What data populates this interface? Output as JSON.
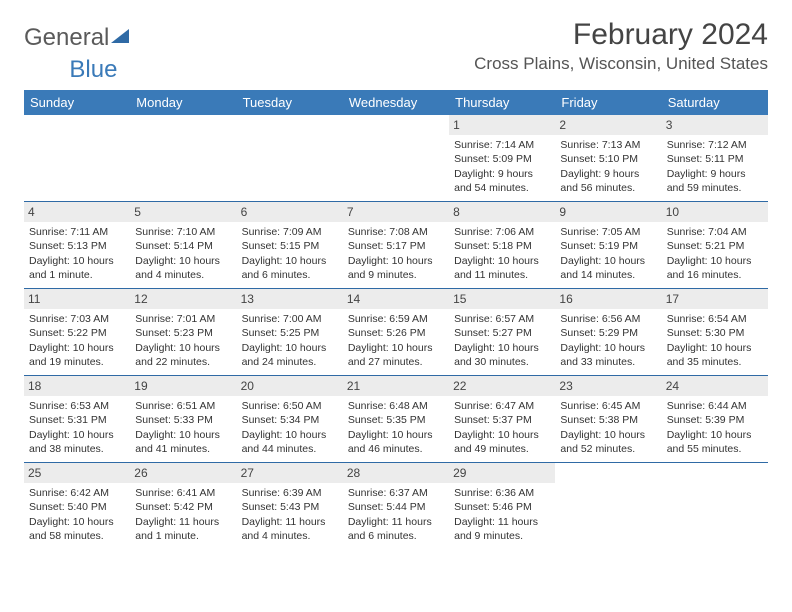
{
  "brand": {
    "word1": "General",
    "word2": "Blue"
  },
  "title": "February 2024",
  "location": "Cross Plains, Wisconsin, United States",
  "colors": {
    "header_bg": "#3a7ab8",
    "rule": "#2f6aa5",
    "daynum_bg": "#ececec",
    "text": "#333333"
  },
  "typography": {
    "title_fontsize": 30,
    "location_fontsize": 17,
    "dayhead_fontsize": 13,
    "cell_fontsize": 10.5
  },
  "day_names": [
    "Sunday",
    "Monday",
    "Tuesday",
    "Wednesday",
    "Thursday",
    "Friday",
    "Saturday"
  ],
  "weeks": [
    [
      {
        "n": "",
        "lines": []
      },
      {
        "n": "",
        "lines": []
      },
      {
        "n": "",
        "lines": []
      },
      {
        "n": "",
        "lines": []
      },
      {
        "n": "1",
        "lines": [
          "Sunrise: 7:14 AM",
          "Sunset: 5:09 PM",
          "Daylight: 9 hours and 54 minutes."
        ]
      },
      {
        "n": "2",
        "lines": [
          "Sunrise: 7:13 AM",
          "Sunset: 5:10 PM",
          "Daylight: 9 hours and 56 minutes."
        ]
      },
      {
        "n": "3",
        "lines": [
          "Sunrise: 7:12 AM",
          "Sunset: 5:11 PM",
          "Daylight: 9 hours and 59 minutes."
        ]
      }
    ],
    [
      {
        "n": "4",
        "lines": [
          "Sunrise: 7:11 AM",
          "Sunset: 5:13 PM",
          "Daylight: 10 hours and 1 minute."
        ]
      },
      {
        "n": "5",
        "lines": [
          "Sunrise: 7:10 AM",
          "Sunset: 5:14 PM",
          "Daylight: 10 hours and 4 minutes."
        ]
      },
      {
        "n": "6",
        "lines": [
          "Sunrise: 7:09 AM",
          "Sunset: 5:15 PM",
          "Daylight: 10 hours and 6 minutes."
        ]
      },
      {
        "n": "7",
        "lines": [
          "Sunrise: 7:08 AM",
          "Sunset: 5:17 PM",
          "Daylight: 10 hours and 9 minutes."
        ]
      },
      {
        "n": "8",
        "lines": [
          "Sunrise: 7:06 AM",
          "Sunset: 5:18 PM",
          "Daylight: 10 hours and 11 minutes."
        ]
      },
      {
        "n": "9",
        "lines": [
          "Sunrise: 7:05 AM",
          "Sunset: 5:19 PM",
          "Daylight: 10 hours and 14 minutes."
        ]
      },
      {
        "n": "10",
        "lines": [
          "Sunrise: 7:04 AM",
          "Sunset: 5:21 PM",
          "Daylight: 10 hours and 16 minutes."
        ]
      }
    ],
    [
      {
        "n": "11",
        "lines": [
          "Sunrise: 7:03 AM",
          "Sunset: 5:22 PM",
          "Daylight: 10 hours and 19 minutes."
        ]
      },
      {
        "n": "12",
        "lines": [
          "Sunrise: 7:01 AM",
          "Sunset: 5:23 PM",
          "Daylight: 10 hours and 22 minutes."
        ]
      },
      {
        "n": "13",
        "lines": [
          "Sunrise: 7:00 AM",
          "Sunset: 5:25 PM",
          "Daylight: 10 hours and 24 minutes."
        ]
      },
      {
        "n": "14",
        "lines": [
          "Sunrise: 6:59 AM",
          "Sunset: 5:26 PM",
          "Daylight: 10 hours and 27 minutes."
        ]
      },
      {
        "n": "15",
        "lines": [
          "Sunrise: 6:57 AM",
          "Sunset: 5:27 PM",
          "Daylight: 10 hours and 30 minutes."
        ]
      },
      {
        "n": "16",
        "lines": [
          "Sunrise: 6:56 AM",
          "Sunset: 5:29 PM",
          "Daylight: 10 hours and 33 minutes."
        ]
      },
      {
        "n": "17",
        "lines": [
          "Sunrise: 6:54 AM",
          "Sunset: 5:30 PM",
          "Daylight: 10 hours and 35 minutes."
        ]
      }
    ],
    [
      {
        "n": "18",
        "lines": [
          "Sunrise: 6:53 AM",
          "Sunset: 5:31 PM",
          "Daylight: 10 hours and 38 minutes."
        ]
      },
      {
        "n": "19",
        "lines": [
          "Sunrise: 6:51 AM",
          "Sunset: 5:33 PM",
          "Daylight: 10 hours and 41 minutes."
        ]
      },
      {
        "n": "20",
        "lines": [
          "Sunrise: 6:50 AM",
          "Sunset: 5:34 PM",
          "Daylight: 10 hours and 44 minutes."
        ]
      },
      {
        "n": "21",
        "lines": [
          "Sunrise: 6:48 AM",
          "Sunset: 5:35 PM",
          "Daylight: 10 hours and 46 minutes."
        ]
      },
      {
        "n": "22",
        "lines": [
          "Sunrise: 6:47 AM",
          "Sunset: 5:37 PM",
          "Daylight: 10 hours and 49 minutes."
        ]
      },
      {
        "n": "23",
        "lines": [
          "Sunrise: 6:45 AM",
          "Sunset: 5:38 PM",
          "Daylight: 10 hours and 52 minutes."
        ]
      },
      {
        "n": "24",
        "lines": [
          "Sunrise: 6:44 AM",
          "Sunset: 5:39 PM",
          "Daylight: 10 hours and 55 minutes."
        ]
      }
    ],
    [
      {
        "n": "25",
        "lines": [
          "Sunrise: 6:42 AM",
          "Sunset: 5:40 PM",
          "Daylight: 10 hours and 58 minutes."
        ]
      },
      {
        "n": "26",
        "lines": [
          "Sunrise: 6:41 AM",
          "Sunset: 5:42 PM",
          "Daylight: 11 hours and 1 minute."
        ]
      },
      {
        "n": "27",
        "lines": [
          "Sunrise: 6:39 AM",
          "Sunset: 5:43 PM",
          "Daylight: 11 hours and 4 minutes."
        ]
      },
      {
        "n": "28",
        "lines": [
          "Sunrise: 6:37 AM",
          "Sunset: 5:44 PM",
          "Daylight: 11 hours and 6 minutes."
        ]
      },
      {
        "n": "29",
        "lines": [
          "Sunrise: 6:36 AM",
          "Sunset: 5:46 PM",
          "Daylight: 11 hours and 9 minutes."
        ]
      },
      {
        "n": "",
        "lines": []
      },
      {
        "n": "",
        "lines": []
      }
    ]
  ]
}
